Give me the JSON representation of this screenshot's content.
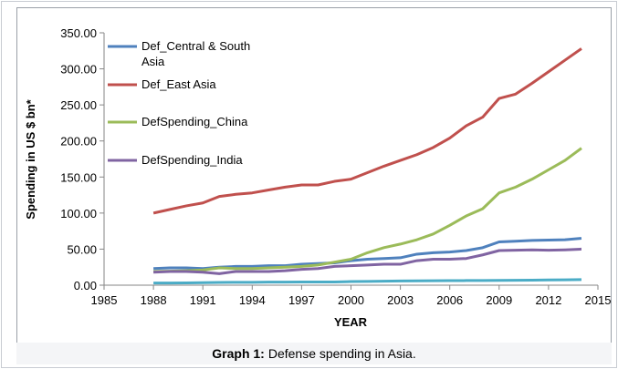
{
  "chart_data": {
    "type": "line",
    "ylabel": "Spending in US $ bn*",
    "xlabel": "YEAR",
    "caption_label": "Graph 1:",
    "caption": "Defense spending in Asia.",
    "x": [
      1988,
      1989,
      1990,
      1991,
      1992,
      1993,
      1994,
      1995,
      1996,
      1997,
      1998,
      1999,
      2000,
      2001,
      2002,
      2003,
      2004,
      2005,
      2006,
      2007,
      2008,
      2009,
      2010,
      2011,
      2012,
      2013,
      2014
    ],
    "series": [
      {
        "name": "Def_Central & South Asia",
        "color": "#4f81bd",
        "values": [
          23,
          24,
          24,
          23,
          25,
          26,
          26,
          27,
          27,
          29,
          30,
          31,
          34,
          36,
          37,
          38,
          43,
          45,
          46,
          48,
          52,
          60,
          61,
          62,
          62.5,
          63,
          65
        ]
      },
      {
        "name": "Def_East Asia",
        "color": "#c0504d",
        "values": [
          100,
          105,
          110,
          114,
          123,
          126,
          128,
          132,
          136,
          139,
          139,
          144,
          147,
          156,
          165,
          173,
          181,
          191,
          204,
          221,
          233,
          259,
          265,
          280,
          296,
          312,
          328
        ]
      },
      {
        "name": "DefSpending_China",
        "color": "#9bbb59",
        "values": [
          19,
          19.5,
          20,
          21,
          24,
          23,
          23,
          24,
          25,
          26,
          28,
          32,
          36,
          45,
          52,
          57,
          63,
          71,
          83,
          96,
          106,
          128,
          136,
          147,
          160,
          173,
          190
        ]
      },
      {
        "name": "DefSpending_India",
        "color": "#8064a2",
        "values": [
          18,
          19,
          19,
          18,
          16,
          19,
          19,
          19,
          20,
          22,
          23,
          26,
          27,
          28,
          29,
          29,
          34,
          36,
          36,
          37,
          42,
          48,
          48.5,
          49,
          48.5,
          49,
          50
        ]
      },
      {
        "color": "#4bacc6",
        "values": [
          3,
          3,
          3.2,
          3.5,
          3.8,
          4,
          4,
          4.2,
          4.3,
          4.5,
          4.5,
          4.5,
          5,
          5.2,
          5.5,
          5.8,
          6,
          6.2,
          6.3,
          6.4,
          6.5,
          6.6,
          6.8,
          7,
          7.2,
          7.5,
          7.8
        ]
      }
    ],
    "xlim": [
      1985,
      2015
    ],
    "xticks": [
      1985,
      1988,
      1991,
      1994,
      1997,
      2000,
      2003,
      2006,
      2009,
      2012,
      2015
    ],
    "ylim": [
      0,
      350
    ],
    "yticks": [
      {
        "value": 0,
        "label": "0.00"
      },
      {
        "value": 50,
        "label": "50.00"
      },
      {
        "value": 100,
        "label": "100.00"
      },
      {
        "value": 150,
        "label": "150.00"
      },
      {
        "value": 200,
        "label": "200.00"
      },
      {
        "value": 250,
        "label": "250.00"
      },
      {
        "value": 300,
        "label": "300.00"
      },
      {
        "value": 350,
        "label": "350.00"
      }
    ],
    "grid": false,
    "legend": "upper left"
  }
}
